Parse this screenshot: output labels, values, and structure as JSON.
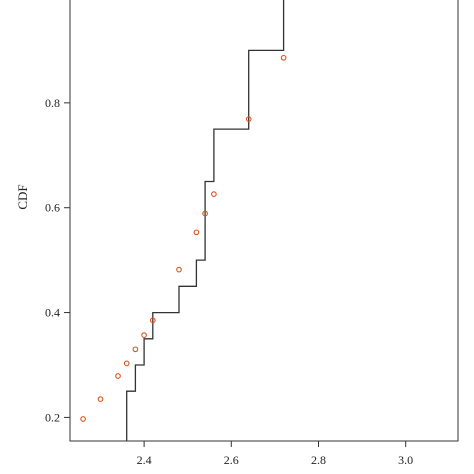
{
  "chart_data": {
    "type": "scatter",
    "title": "",
    "xlabel": "",
    "ylabel": "CDF",
    "xlim": [
      2.23,
      3.12
    ],
    "ylim": [
      0.155,
      1.0
    ],
    "x_ticks": [
      2.4,
      2.6,
      2.8,
      3.0
    ],
    "x_tick_labels": [
      "2.4",
      "2.6",
      "2.8",
      "3.0"
    ],
    "y_ticks": [
      0.2,
      0.4,
      0.6,
      0.8
    ],
    "y_tick_labels": [
      "0.2",
      "0.4",
      "0.6",
      "0.8"
    ],
    "grid": false,
    "series": [
      {
        "kind": "step",
        "color": "#333333",
        "x": [
          2.36,
          2.36,
          2.38,
          2.38,
          2.4,
          2.4,
          2.42,
          2.42,
          2.48,
          2.48,
          2.52,
          2.52,
          2.54,
          2.54,
          2.56,
          2.56,
          2.64,
          2.64,
          2.72,
          2.72
        ],
        "y": [
          0.155,
          0.25,
          0.25,
          0.3,
          0.3,
          0.35,
          0.35,
          0.4,
          0.4,
          0.45,
          0.45,
          0.5,
          0.5,
          0.65,
          0.65,
          0.75,
          0.75,
          0.9,
          0.9,
          1.0
        ]
      },
      {
        "kind": "points",
        "color": "#d9541e",
        "x": [
          2.26,
          2.3,
          2.34,
          2.36,
          2.38,
          2.4,
          2.42,
          2.48,
          2.52,
          2.54,
          2.56,
          2.64,
          2.72
        ],
        "y": [
          0.197,
          0.235,
          0.279,
          0.303,
          0.33,
          0.357,
          0.385,
          0.482,
          0.553,
          0.589,
          0.626,
          0.769,
          0.886
        ]
      }
    ]
  }
}
